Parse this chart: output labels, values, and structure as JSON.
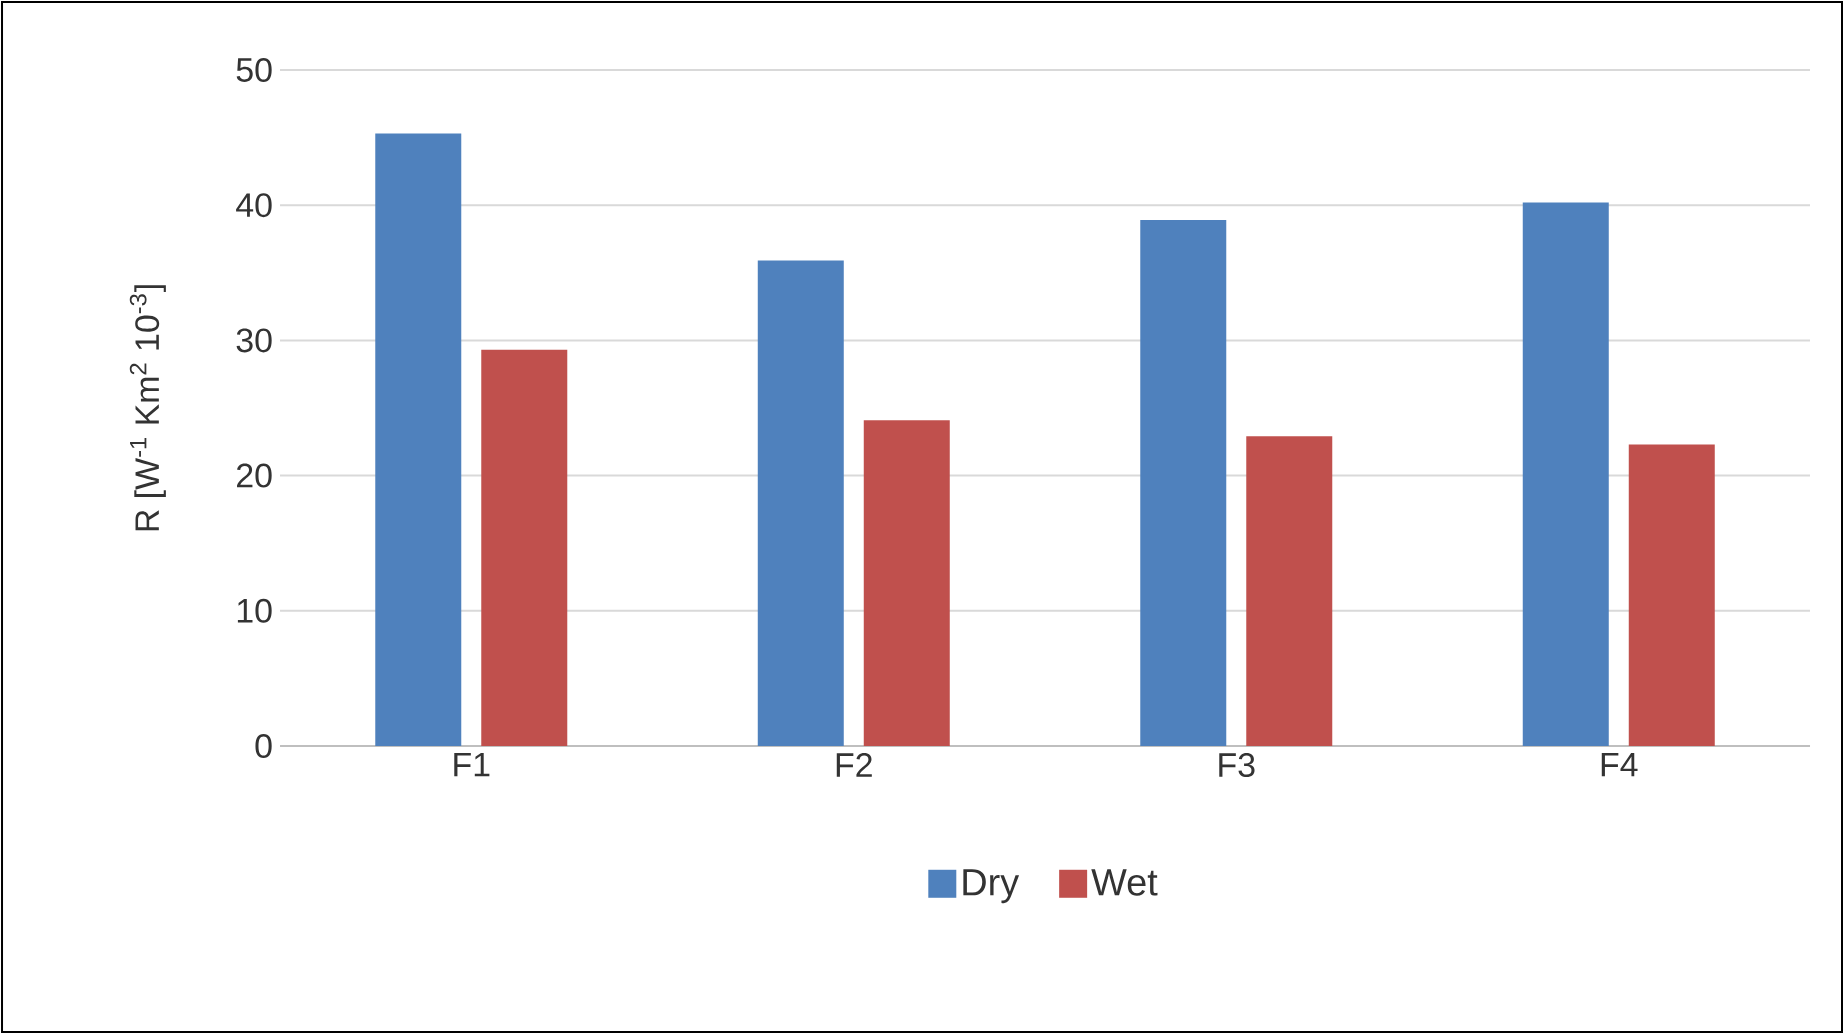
{
  "chart_data": {
    "type": "bar",
    "ylabel": "R  [W$^{-1}$ Km$^{2}$ 10$^{-3}$]",
    "categories": [
      "F1",
      "F2",
      "F3",
      "F4"
    ],
    "series": [
      {
        "name": "Dry",
        "color": "#4f81bd",
        "values": [
          45.3,
          35.9,
          38.9,
          40.2
        ]
      },
      {
        "name": "Wet",
        "color": "#c0504d",
        "values": [
          29.3,
          24.1,
          22.9,
          22.3
        ]
      }
    ],
    "ylim": [
      0,
      50
    ],
    "yticks": [
      0,
      10,
      20,
      30,
      40,
      50
    ],
    "grid": "y",
    "legend": "bottom"
  }
}
